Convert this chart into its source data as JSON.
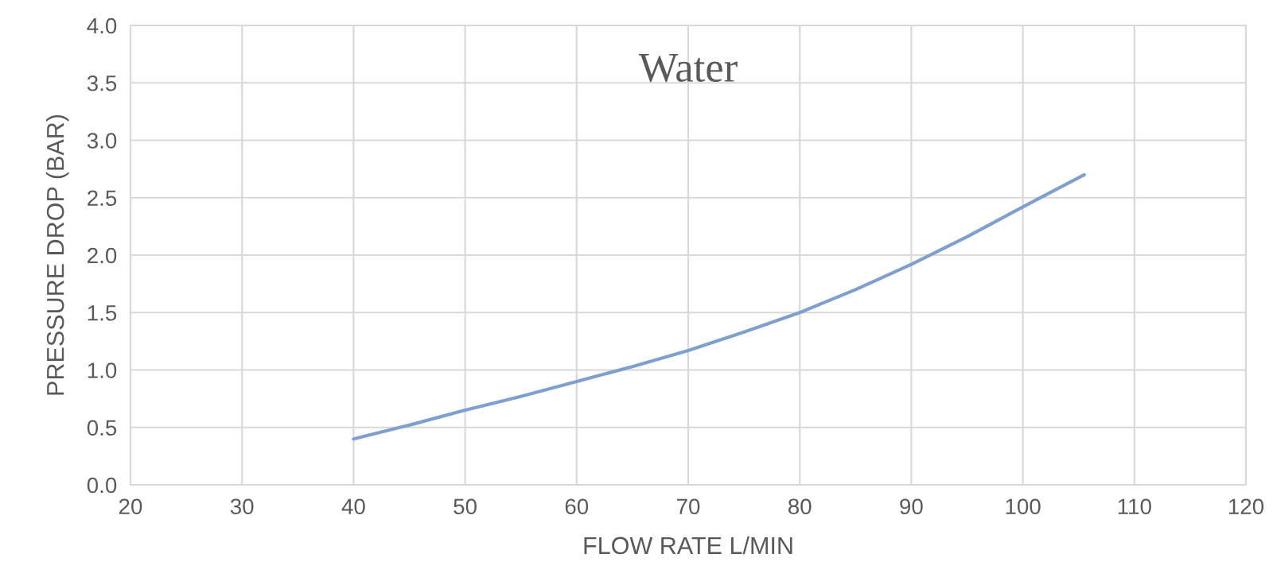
{
  "chart_data": {
    "type": "line",
    "title": "Water",
    "xlabel": "FLOW RATE L/MIN",
    "ylabel": "PRESSURE DROP (BAR)",
    "x": [
      40,
      45,
      50,
      55,
      60,
      65,
      70,
      75,
      80,
      85,
      90,
      95,
      100,
      105.5
    ],
    "series": [
      {
        "color": "#7f9fcf",
        "values": [
          0.4,
          0.52,
          0.65,
          0.77,
          0.9,
          1.03,
          1.17,
          1.33,
          1.5,
          1.7,
          1.92,
          2.16,
          2.42,
          2.7
        ]
      }
    ],
    "xlim": [
      20,
      120
    ],
    "xticks": [
      20,
      30,
      40,
      50,
      60,
      70,
      80,
      90,
      100,
      110,
      120
    ],
    "ylim": [
      0,
      4
    ],
    "yticks": [
      {
        "value": 0,
        "label": "0.0"
      },
      {
        "value": 0.5,
        "label": "0.5"
      },
      {
        "value": 1,
        "label": "1.0"
      },
      {
        "value": 1.5,
        "label": "1.5"
      },
      {
        "value": 2,
        "label": "2.0"
      },
      {
        "value": 2.5,
        "label": "2.5"
      },
      {
        "value": 3,
        "label": "3.0"
      },
      {
        "value": 3.5,
        "label": "3.5"
      },
      {
        "value": 4,
        "label": "4.0"
      }
    ],
    "grid": true,
    "legend": false,
    "marker": "none",
    "line_style": "solid"
  }
}
